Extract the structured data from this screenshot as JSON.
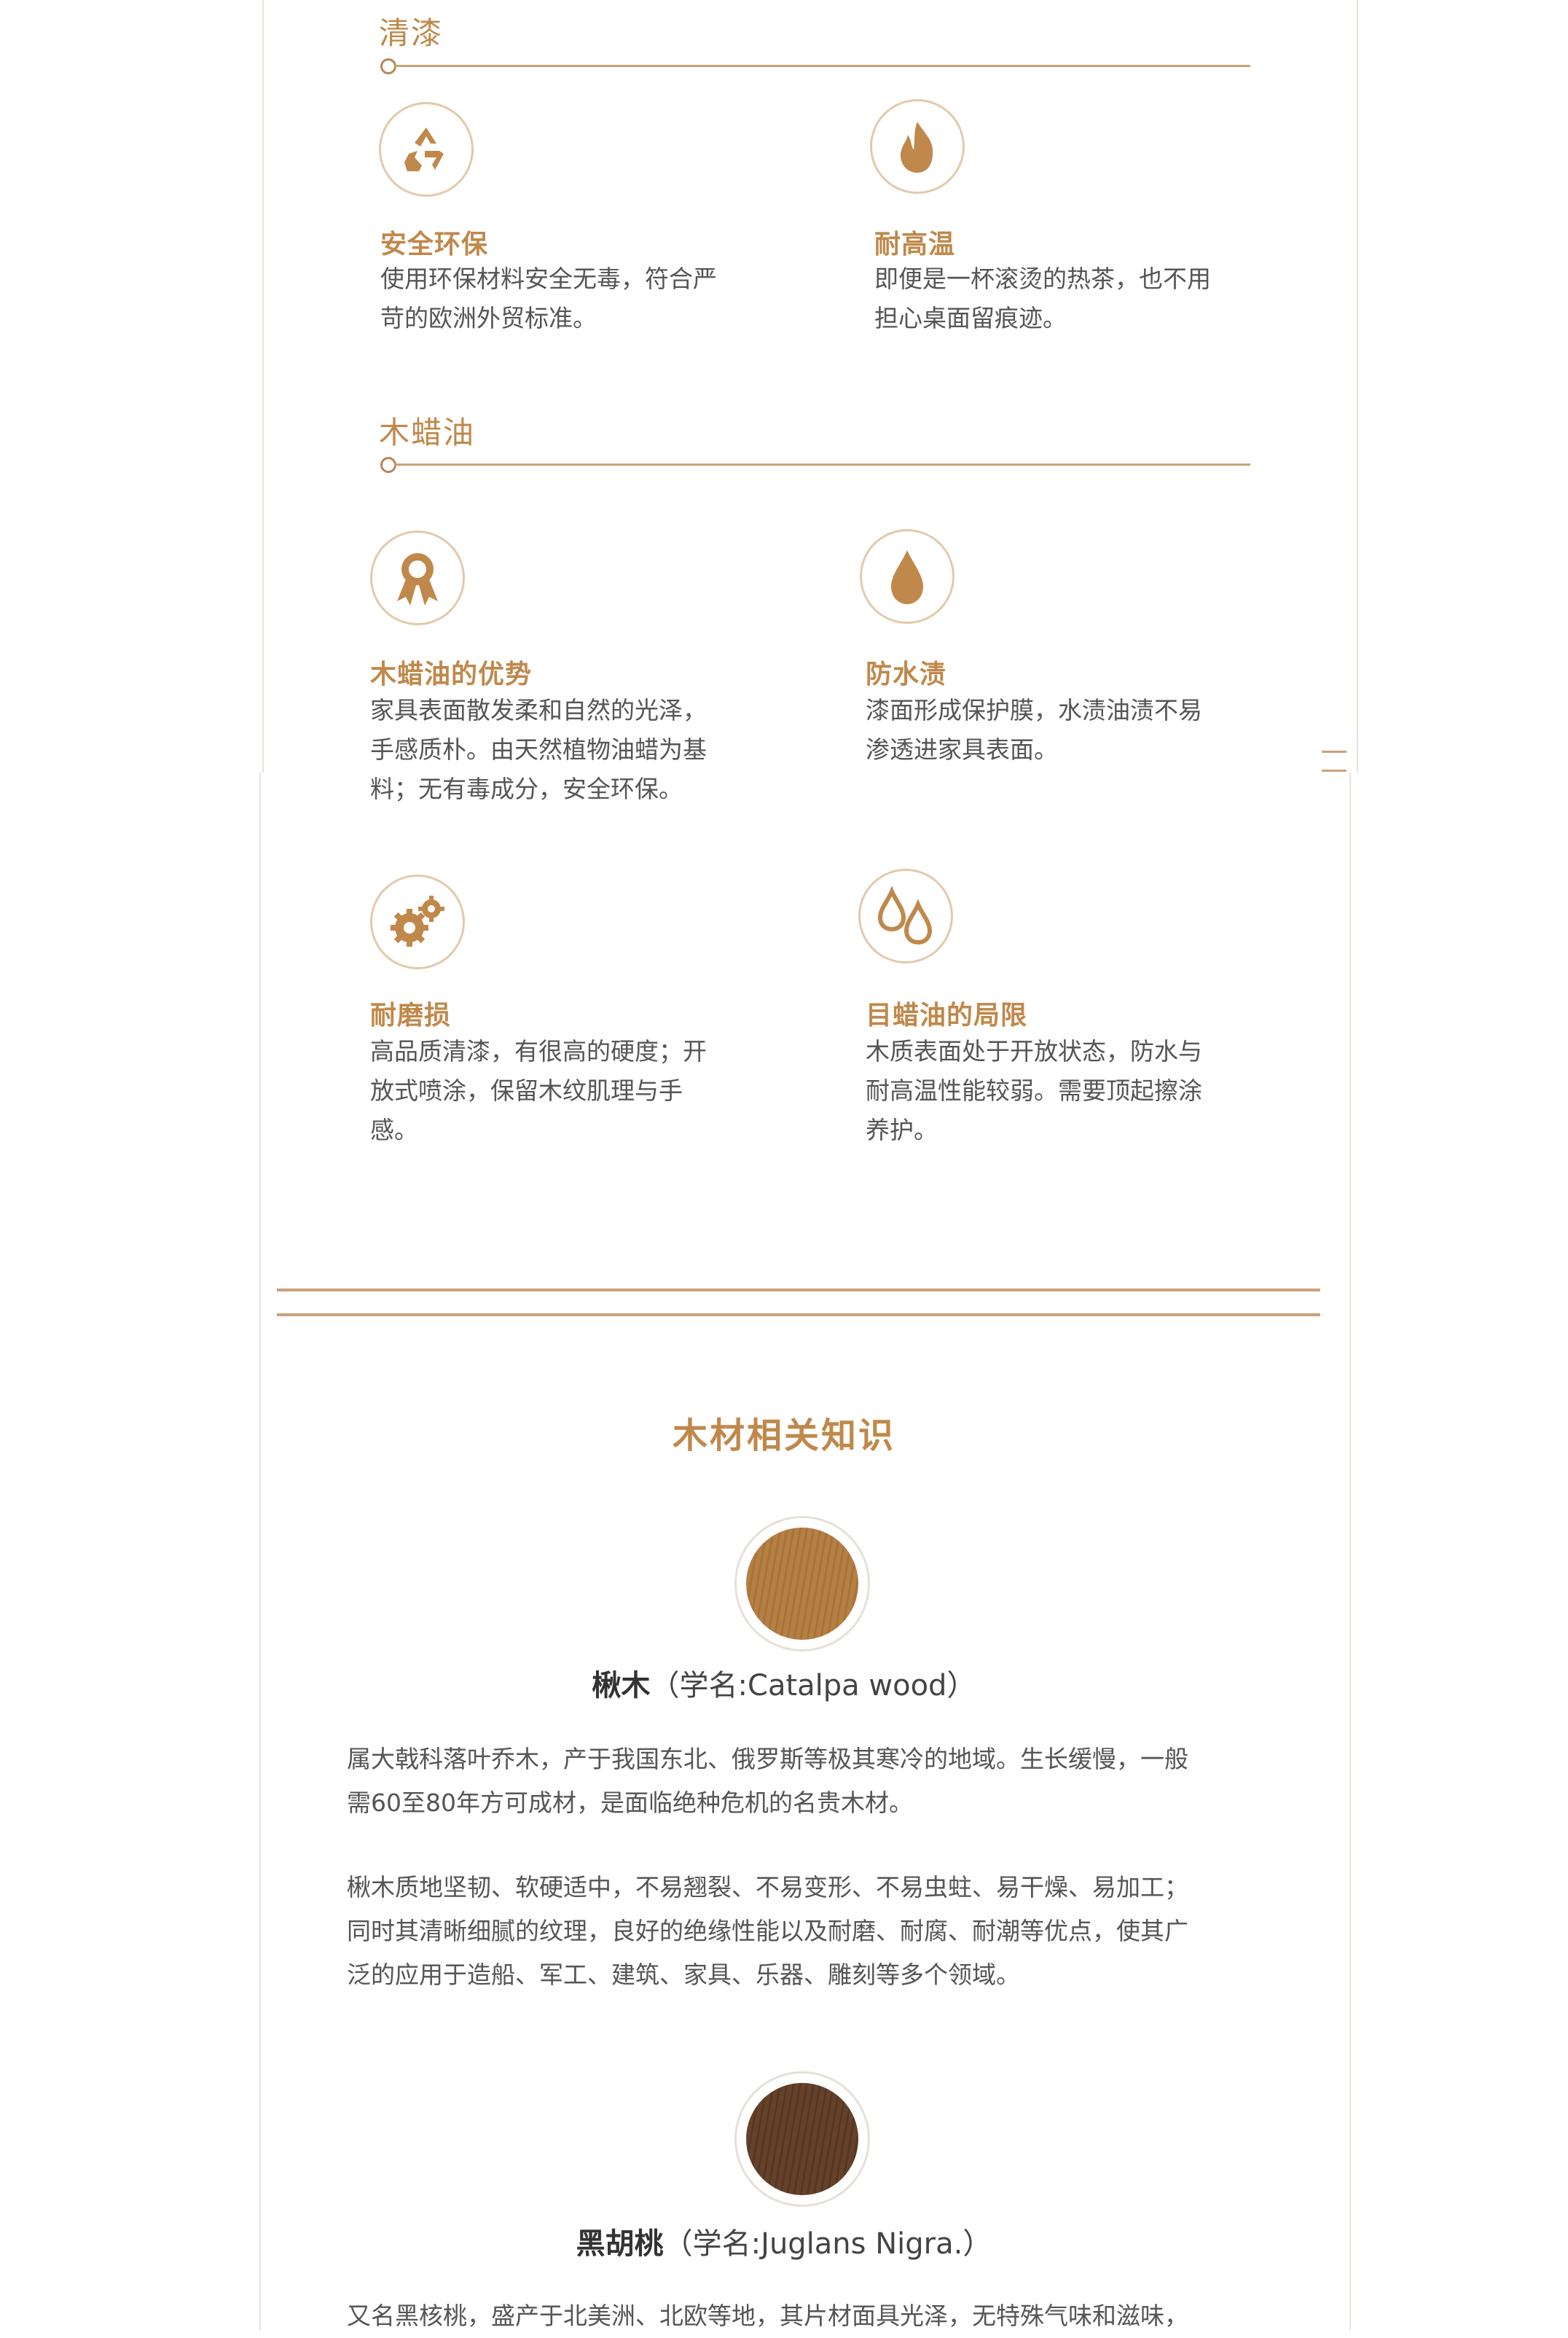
{
  "sections": [
    {
      "title": "清漆"
    },
    {
      "title": "木蜡油"
    }
  ],
  "features": [
    {
      "icon": "recycle-icon",
      "title": "安全环保",
      "lines": [
        "使用环保材料安全无毒，符合严",
        "苛的欧洲外贸标准。"
      ]
    },
    {
      "icon": "flame-icon",
      "title": "耐高温",
      "lines": [
        "即便是一杯滚烫的热茶，也不用",
        "担心桌面留痕迹。"
      ]
    },
    {
      "icon": "award-icon",
      "title": "木蜡油的优势",
      "lines": [
        "家具表面散发柔和自然的光泽，",
        "手感质朴。由天然植物油蜡为基",
        "料；无有毒成分，安全环保。"
      ]
    },
    {
      "icon": "drop-icon",
      "title": "防水渍",
      "lines": [
        "漆面形成保护膜，水渍油渍不易",
        "渗透进家具表面。"
      ]
    },
    {
      "icon": "gears-icon",
      "title": "耐磨损",
      "lines": [
        "高品质清漆，有很高的硬度；开",
        "放式喷涂，保留木纹肌理与手",
        "感。"
      ]
    },
    {
      "icon": "drops-icon",
      "title": "目蜡油的局限",
      "lines": [
        "木质表面处于开放状态，防水与",
        "耐高温性能较弱。需要顶起擦涂",
        "养护。"
      ]
    }
  ],
  "knowledge": {
    "title": "木材相关知识",
    "woods": [
      {
        "name": "楸木",
        "scientific": "（学名:Catalpa wood）",
        "color": "#b37a3c",
        "paragraphs": [
          [
            "属大戟科落叶乔木，产于我国东北、俄罗斯等极其寒冷的地域。生长缓慢，一般",
            "需60至80年方可成材，是面临绝种危机的名贵木材。"
          ],
          [
            "楸木质地坚韧、软硬适中，不易翘裂、不易变形、不易虫蛀、易干燥、易加工；",
            "同时其清晰细腻的纹理，良好的绝缘性能以及耐磨、耐腐、耐潮等优点，使其广",
            "泛的应用于造船、军工、建筑、家具、乐器、雕刻等多个领域。"
          ]
        ]
      },
      {
        "name": "黑胡桃",
        "scientific": "（学名:Juglans Nigra.）",
        "color": "#5e3a22",
        "paragraphs": [
          [
            "又名黑核桃，盛产于北美洲、北欧等地，其片材面具光泽，无特殊气味和滋味，"
          ]
        ]
      }
    ]
  },
  "colors": {
    "accent": "#c0884a",
    "line": "#c9a27a",
    "ring": "#e3c9aa"
  }
}
